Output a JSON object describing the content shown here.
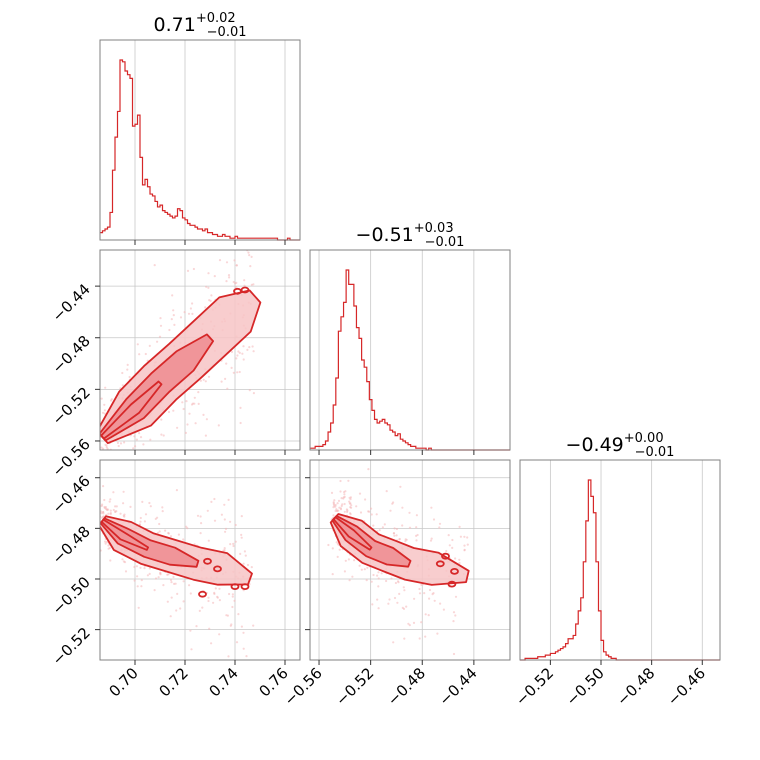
{
  "chart_data": {
    "type": "corner",
    "line_color": "#d62728",
    "fill_color": "#f4a6aa",
    "grid": true,
    "parameters": [
      {
        "title_value": "0.71",
        "title_plus": "+0.02",
        "title_minus": "−0.01",
        "range": [
          0.686,
          0.766
        ],
        "ticks": [
          0.7,
          0.72,
          0.74,
          0.76
        ],
        "tick_labels": [
          "0.70",
          "0.72",
          "0.74",
          "0.76"
        ],
        "histogram": {
          "bin_edges_start": 0.686,
          "bin_width": 0.001,
          "counts": [
            4,
            5,
            6,
            7,
            15,
            38,
            56,
            70,
            98,
            97,
            92,
            90,
            88,
            62,
            63,
            68,
            45,
            30,
            33,
            29,
            25,
            24,
            21,
            18,
            19,
            16,
            15,
            14,
            13,
            12,
            13,
            17,
            16,
            12,
            11,
            9,
            8,
            8,
            7,
            6,
            6,
            5,
            6,
            4,
            4,
            3,
            3,
            2,
            2,
            3,
            2,
            2,
            1,
            1,
            2,
            1,
            1,
            1,
            1,
            1,
            1,
            1,
            1,
            1,
            1,
            1,
            1,
            1,
            1,
            1,
            1,
            0,
            0,
            0,
            0,
            1,
            0,
            0,
            0,
            0
          ]
        }
      },
      {
        "title_value": "−0.51",
        "title_plus": "+0.03",
        "title_minus": "−0.01",
        "range": [
          -0.567,
          -0.412
        ],
        "ticks": [
          -0.56,
          -0.52,
          -0.48,
          -0.44
        ],
        "tick_labels": [
          "−0.56",
          "−0.52",
          "−0.48",
          "−0.44"
        ],
        "histogram": {
          "bin_edges_start": -0.567,
          "bin_width": 0.002,
          "counts": [
            1,
            1,
            2,
            2,
            2,
            3,
            5,
            10,
            15,
            25,
            40,
            66,
            74,
            82,
            100,
            92,
            92,
            80,
            68,
            62,
            50,
            46,
            38,
            28,
            22,
            17,
            15,
            16,
            17,
            15,
            14,
            11,
            10,
            8,
            9,
            6,
            5,
            4,
            3,
            2,
            2,
            1,
            1,
            1,
            1,
            0,
            1,
            0,
            0,
            0,
            0,
            0,
            0,
            0,
            0,
            0,
            0,
            0,
            0,
            0,
            0,
            0,
            0,
            0,
            0,
            0,
            0,
            0,
            0,
            0,
            0,
            0,
            0,
            0,
            0,
            0,
            0,
            0
          ]
        }
      },
      {
        "title_value": "−0.49",
        "title_plus": "+0.00",
        "title_minus": "−0.01",
        "range": [
          -0.532,
          -0.453
        ],
        "ticks": [
          -0.52,
          -0.5,
          -0.48,
          -0.46
        ],
        "tick_labels": [
          "−0.52",
          "−0.50",
          "−0.48",
          "−0.46"
        ],
        "histogram": {
          "bin_edges_start": -0.532,
          "bin_width": 0.001,
          "counts": [
            0,
            0,
            1,
            1,
            1,
            1,
            1,
            2,
            2,
            2,
            3,
            3,
            4,
            4,
            5,
            6,
            7,
            8,
            10,
            13,
            13,
            15,
            22,
            30,
            38,
            60,
            85,
            110,
            100,
            90,
            60,
            30,
            12,
            5,
            3,
            2,
            1,
            1,
            0,
            0,
            0,
            0,
            0,
            0,
            0,
            0,
            0,
            0,
            0,
            0,
            0,
            0,
            0,
            0,
            0,
            0,
            0,
            0,
            0,
            0,
            0,
            0,
            0,
            0,
            0,
            0,
            0,
            0,
            0,
            0,
            0,
            0,
            0,
            0,
            0,
            0,
            0,
            0,
            0,
            0
          ]
        }
      }
    ],
    "pairs": [
      {
        "x_param": 0,
        "y_param": 1,
        "core": [
          [
            0.687,
            -0.557
          ],
          [
            0.7,
            -0.535
          ],
          [
            0.71,
            -0.515
          ],
          [
            0.72,
            -0.498
          ],
          [
            0.73,
            -0.48
          ],
          [
            0.74,
            -0.462
          ],
          [
            0.748,
            -0.448
          ]
        ],
        "inner_width": 0.01,
        "outer_width": 0.018,
        "islands": [
          [
            0.744,
            -0.443
          ],
          [
            0.741,
            -0.444
          ]
        ]
      },
      {
        "x_param": 0,
        "y_param": 2,
        "core": [
          [
            0.687,
            -0.477
          ],
          [
            0.695,
            -0.483
          ],
          [
            0.705,
            -0.488
          ],
          [
            0.715,
            -0.491
          ],
          [
            0.725,
            -0.494
          ],
          [
            0.735,
            -0.496
          ],
          [
            0.746,
            -0.5
          ]
        ],
        "inner_width": 0.0035,
        "outer_width": 0.0065,
        "islands": [
          [
            0.729,
            -0.493
          ],
          [
            0.733,
            -0.496
          ],
          [
            0.744,
            -0.503
          ],
          [
            0.74,
            -0.503
          ],
          [
            0.727,
            -0.506
          ]
        ]
      },
      {
        "x_param": 1,
        "y_param": 2,
        "core": [
          [
            -0.548,
            -0.476
          ],
          [
            -0.535,
            -0.482
          ],
          [
            -0.52,
            -0.488
          ],
          [
            -0.505,
            -0.491
          ],
          [
            -0.49,
            -0.494
          ],
          [
            -0.47,
            -0.496
          ],
          [
            -0.445,
            -0.499
          ]
        ],
        "inner_width": 0.0035,
        "outer_width": 0.0065,
        "islands": [
          [
            -0.462,
            -0.491
          ],
          [
            -0.466,
            -0.494
          ],
          [
            -0.455,
            -0.497
          ],
          [
            -0.457,
            -0.502
          ]
        ]
      }
    ]
  }
}
